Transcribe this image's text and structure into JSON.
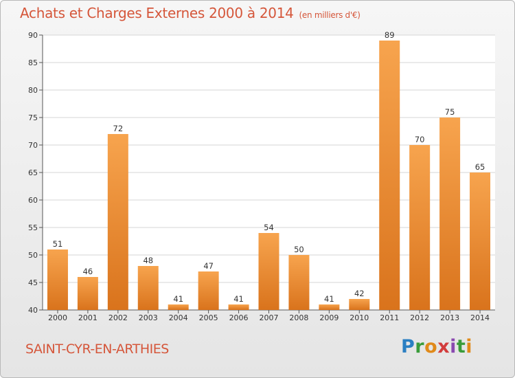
{
  "chart_data": {
    "type": "bar",
    "title": "Achats et Charges Externes 2000 à 2014",
    "subtitle": "(en milliers d'€)",
    "categories": [
      "2000",
      "2001",
      "2002",
      "2003",
      "2004",
      "2005",
      "2006",
      "2007",
      "2008",
      "2009",
      "2010",
      "2011",
      "2012",
      "2013",
      "2014"
    ],
    "values": [
      51,
      46,
      72,
      48,
      41,
      47,
      41,
      54,
      50,
      41,
      42,
      89,
      70,
      75,
      65
    ],
    "ylim": [
      40,
      90
    ],
    "yticks": [
      40,
      45,
      50,
      55,
      60,
      65,
      70,
      75,
      80,
      85,
      90
    ],
    "grid": true,
    "xlabel": "",
    "ylabel": "",
    "bar_color_top": "#f7a44e",
    "bar_color_bottom": "#d9731c"
  },
  "footer": {
    "place_name": "SAINT-CYR-EN-ARTHIES",
    "logo_text": "Proxiti"
  },
  "colors": {
    "title": "#d5563a",
    "grid": "#d6d6d6"
  }
}
